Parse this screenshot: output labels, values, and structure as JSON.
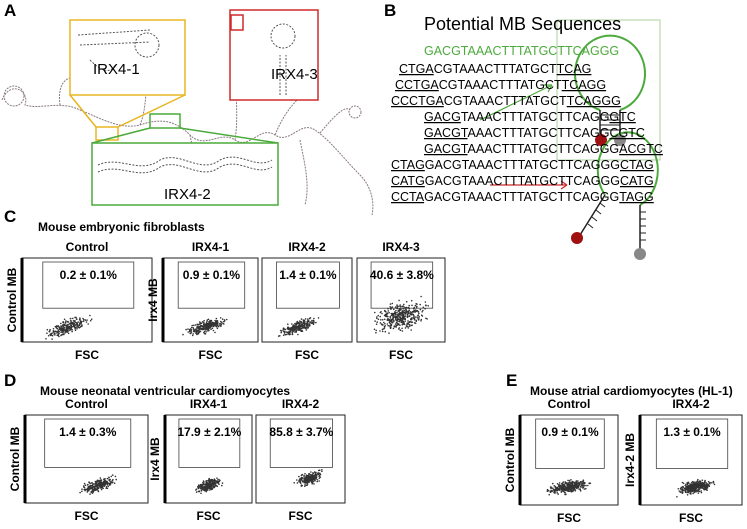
{
  "panels": {
    "A": {
      "letter": "A",
      "labels": [
        "IRX4-1",
        "IRX4-2",
        "IRX4-3"
      ]
    },
    "B": {
      "letter": "B",
      "title": "Potential MB Sequences",
      "probe": "GACGTAAACTTTATGCTTCAGGG",
      "sequences": [
        [
          "CTGA",
          "CGTAAACTTTATGCT",
          "TCAG"
        ],
        [
          "CCTGA",
          "CGTAAACTTTATGCT",
          "TCAGG"
        ],
        [
          "CCCTGA",
          "CGTAAACTTTATGCT",
          "TCAGGG"
        ],
        [
          "GACG",
          "TAAACTTTATGCTTCAGG",
          "GTC"
        ],
        [
          "GACGT",
          "AAACTTTATGCTTCAGG",
          "CGTC"
        ],
        [
          "GACGT",
          "AAACTTTATGCTTCAGGG",
          "ACGTC"
        ],
        [
          "CTAG",
          "GACGTAAACTTTATGCTTCAGGG",
          "CTAG"
        ],
        [
          "CATG",
          "GACGTAAACTTTATGCTTCAGGG",
          "CATG"
        ],
        [
          "CCTA",
          "GACGTAAACTTTATGCTTCAGGG",
          "TAGG"
        ]
      ]
    },
    "C": {
      "letter": "C",
      "title": "Mouse embryonic fibroblasts",
      "plots": [
        {
          "title": "Control",
          "gate": "0.2 ± 0.1%",
          "ylabel": "Control MB",
          "xlabel": "FSC"
        },
        {
          "title": "IRX4-1",
          "gate": "0.9 ± 0.1%",
          "ylabel": "Irx4 MB",
          "xlabel": "FSC"
        },
        {
          "title": "IRX4-2",
          "gate": "1.4 ± 0.1%",
          "xlabel": "FSC"
        },
        {
          "title": "IRX4-3",
          "gate": "40.6 ± 3.8%",
          "xlabel": "FSC"
        }
      ]
    },
    "D": {
      "letter": "D",
      "title": "Mouse neonatal ventricular cardiomyocytes",
      "plots": [
        {
          "title": "Control",
          "gate": "1.4 ± 0.3%",
          "ylabel": "Control MB",
          "xlabel": "FSC"
        },
        {
          "title": "IRX4-1",
          "gate": "17.9 ± 2.1%",
          "ylabel": "Irx4 MB",
          "xlabel": "FSC"
        },
        {
          "title": "IRX4-2",
          "gate": "85.8 ± 3.7%",
          "xlabel": "FSC"
        }
      ]
    },
    "E": {
      "letter": "E",
      "title": "Mouse atrial cardiomyocytes (HL-1)",
      "plots": [
        {
          "title": "Control",
          "gate": "0.9 ± 0.1%",
          "ylabel": "Control MB",
          "xlabel": "FSC"
        },
        {
          "title": "IRX4-2",
          "gate": "1.3 ± 0.1%",
          "ylabel": "Irx4-2 MB",
          "xlabel": "FSC"
        }
      ]
    }
  }
}
